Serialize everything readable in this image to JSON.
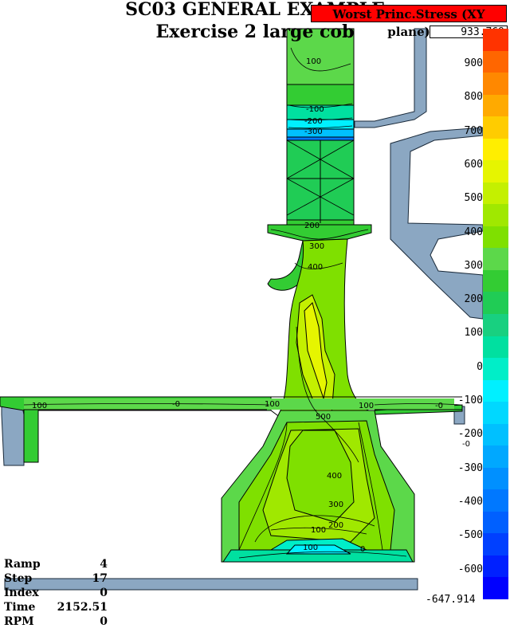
{
  "title": "SC03 GENERAL EXAMPLE",
  "subtitle": "Exercise 2 large cob",
  "legend": {
    "title": "Worst Princ.Stress (XY plane)",
    "max": "933.769",
    "min": "-647.914",
    "ticks": [
      "900",
      "800",
      "700",
      "600",
      "500",
      "400",
      "300",
      "200",
      "100",
      "0",
      "-100",
      "-200",
      "-300",
      "-400",
      "-500",
      "-600"
    ],
    "colors": [
      "#ff3300",
      "#ff6600",
      "#ff8800",
      "#ffaa00",
      "#ffcc00",
      "#ffee00",
      "#e6f500",
      "#c4f000",
      "#a0e800",
      "#7fe000",
      "#5cd84a",
      "#33cc33",
      "#20cc55",
      "#18d080",
      "#00e0a0",
      "#00eec8",
      "#00f0ff",
      "#00d8ff",
      "#00c0ff",
      "#00a8ff",
      "#0090ff",
      "#0078ff",
      "#0060ff",
      "#0040ff",
      "#0020ff",
      "#0000ff"
    ]
  },
  "status": [
    {
      "label": "Ramp",
      "value": "4"
    },
    {
      "label": "Step",
      "value": "17"
    },
    {
      "label": "Index",
      "value": "0"
    },
    {
      "label": "Time",
      "value": "2152.51"
    },
    {
      "label": "RPM",
      "value": "0"
    }
  ],
  "contour_labels": [
    "100",
    "-100",
    "-200",
    "-300",
    "200",
    "300",
    "400",
    "500",
    "400",
    "300",
    "200",
    "100",
    "0",
    "100",
    "100",
    "-0",
    "-0",
    "100",
    "100",
    "-0"
  ]
}
